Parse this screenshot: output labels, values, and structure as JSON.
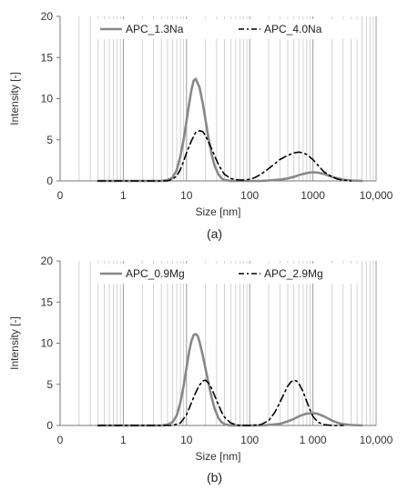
{
  "chart_data": [
    {
      "type": "line",
      "caption": "(a)",
      "xlabel": "Size [nm]",
      "ylabel": "Intensity [-]",
      "xscale": "log",
      "xlim": [
        0.1,
        10000
      ],
      "ylim": [
        0,
        20
      ],
      "yticks": [
        0,
        5,
        10,
        15,
        20
      ],
      "xtick_labels": [
        "0",
        "1",
        "10",
        "100",
        "1000",
        "10,000"
      ],
      "grid": "vertical log gridlines",
      "legend": "top",
      "series": [
        {
          "name": "APC_1.3Na",
          "style": "solid",
          "color": "#888888",
          "x": [
            0.4,
            4,
            5,
            6,
            7,
            8,
            9,
            10,
            11,
            12,
            13,
            14,
            16,
            18,
            20,
            22,
            25,
            28,
            32,
            36,
            40,
            50,
            60,
            80,
            100,
            150,
            200,
            300,
            400,
            500,
            600,
            700,
            800,
            900,
            1000,
            1200,
            1500,
            2000,
            2500,
            3000,
            4000,
            6000
          ],
          "y": [
            0,
            0,
            0.1,
            0.4,
            1.3,
            3.0,
            5.0,
            7.3,
            9.4,
            11.1,
            12.2,
            12.4,
            11.4,
            9.5,
            7.4,
            5.4,
            3.2,
            1.8,
            0.8,
            0.3,
            0.1,
            0,
            0,
            0,
            0,
            0,
            0.05,
            0.15,
            0.3,
            0.5,
            0.7,
            0.85,
            0.95,
            1.0,
            1.05,
            1.0,
            0.85,
            0.5,
            0.3,
            0.15,
            0.05,
            0
          ]
        },
        {
          "name": "APC_4.0Na",
          "style": "dashdot",
          "color": "#000000",
          "x": [
            0.4,
            5,
            6,
            7,
            8,
            9,
            10,
            12,
            14,
            16,
            18,
            20,
            22,
            25,
            28,
            32,
            36,
            40,
            50,
            60,
            70,
            80,
            100,
            120,
            150,
            200,
            250,
            300,
            400,
            500,
            600,
            700,
            800,
            1000,
            1200,
            1500,
            2000,
            2500,
            3000,
            4000
          ],
          "y": [
            0,
            0,
            0.2,
            0.6,
            1.4,
            2.4,
            3.4,
            4.9,
            5.9,
            6.1,
            6.0,
            5.5,
            4.8,
            3.9,
            3.0,
            2.0,
            1.3,
            0.8,
            0.3,
            0.15,
            0.1,
            0.1,
            0.2,
            0.4,
            0.8,
            1.5,
            2.1,
            2.6,
            3.1,
            3.4,
            3.5,
            3.4,
            3.2,
            2.6,
            1.9,
            1.1,
            0.5,
            0.2,
            0.1,
            0
          ]
        }
      ]
    },
    {
      "type": "line",
      "caption": "(b)",
      "xlabel": "Size [nm]",
      "ylabel": "Intensity [-]",
      "xscale": "log",
      "xlim": [
        0.1,
        10000
      ],
      "ylim": [
        0,
        20
      ],
      "yticks": [
        0,
        5,
        10,
        15,
        20
      ],
      "xtick_labels": [
        "0",
        "1",
        "10",
        "100",
        "1 000",
        "10,000"
      ],
      "grid": "vertical log gridlines",
      "legend": "top",
      "series": [
        {
          "name": "APC_0.9Mg",
          "style": "solid",
          "color": "#888888",
          "x": [
            0.4,
            4,
            5,
            6,
            7,
            8,
            9,
            10,
            11,
            12,
            13,
            14,
            15,
            16,
            18,
            20,
            22,
            25,
            28,
            32,
            36,
            40,
            50,
            60,
            80,
            100,
            150,
            200,
            300,
            400,
            500,
            600,
            700,
            800,
            1000,
            1200,
            1500,
            2000,
            2500,
            3000,
            4000,
            6000
          ],
          "y": [
            0,
            0,
            0.1,
            0.4,
            1.2,
            2.8,
            4.8,
            7.0,
            9.0,
            10.3,
            11.0,
            11.1,
            10.9,
            10.2,
            8.6,
            6.9,
            5.3,
            3.4,
            2.0,
            0.9,
            0.4,
            0.15,
            0,
            0,
            0,
            0,
            0,
            0.05,
            0.2,
            0.5,
            0.8,
            1.1,
            1.3,
            1.45,
            1.5,
            1.4,
            1.1,
            0.6,
            0.3,
            0.15,
            0.05,
            0
          ]
        },
        {
          "name": "APC_2.9Mg",
          "style": "dashdot",
          "color": "#000000",
          "x": [
            0.4,
            6,
            8,
            10,
            12,
            14,
            16,
            18,
            20,
            22,
            25,
            28,
            32,
            36,
            40,
            50,
            60,
            70,
            80,
            100,
            150,
            200,
            250,
            300,
            350,
            400,
            450,
            500,
            550,
            600,
            700,
            800,
            900,
            1000,
            1200,
            1500,
            2000,
            3000
          ],
          "y": [
            0,
            0,
            0.3,
            1.3,
            2.8,
            4.0,
            4.9,
            5.4,
            5.5,
            5.2,
            4.5,
            3.6,
            2.5,
            1.6,
            1.0,
            0.3,
            0.1,
            0,
            0,
            0,
            0.1,
            0.6,
            1.6,
            2.8,
            3.9,
            4.8,
            5.3,
            5.5,
            5.4,
            5.1,
            4.1,
            2.9,
            1.9,
            1.1,
            0.4,
            0.1,
            0,
            0
          ]
        }
      ]
    }
  ]
}
